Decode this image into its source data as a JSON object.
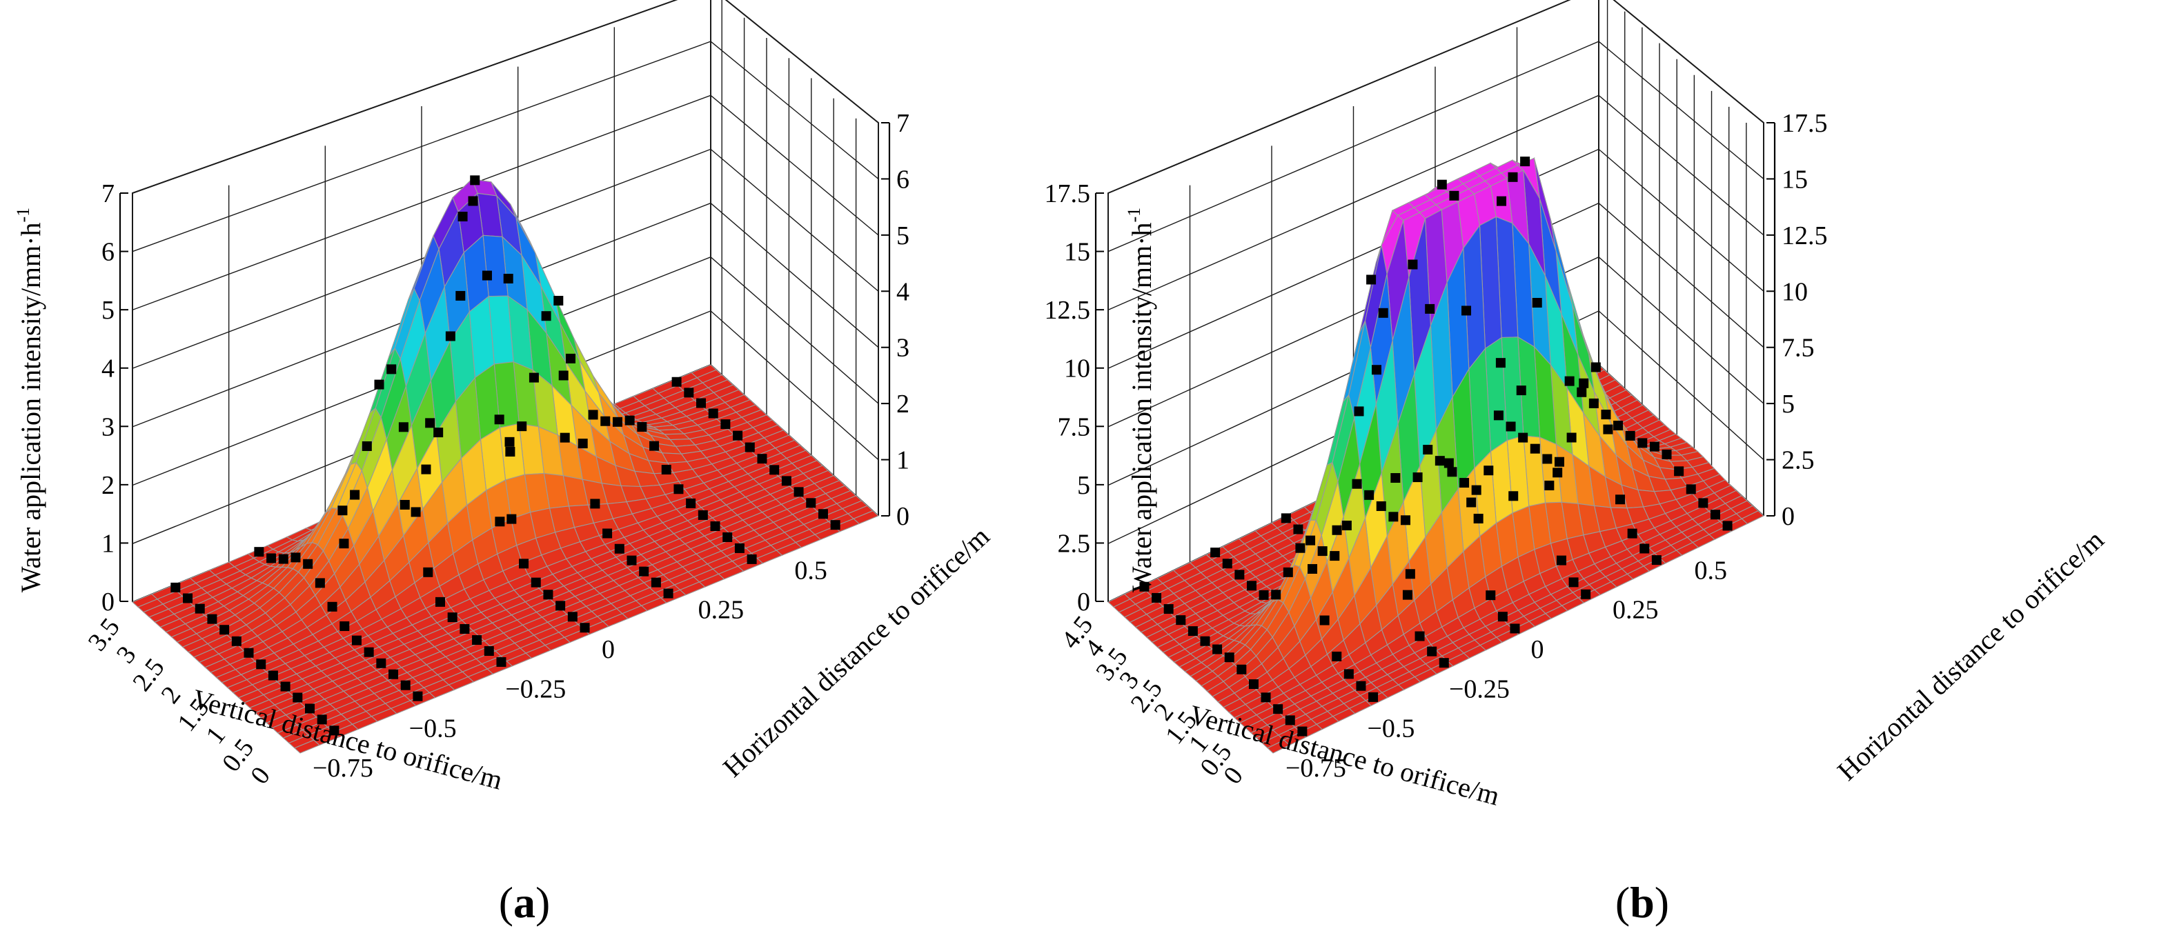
{
  "chart_data": [
    {
      "type": "surface3d",
      "panel_label": "a",
      "z_title": "Water application intensity/mm·h",
      "z_unit_superscript": "-1",
      "y_title": "Vertical distance to orifice/m",
      "x_title": "Horizontal distance to orifice/m",
      "zlim": [
        0,
        7
      ],
      "z_ticks": [
        "0",
        "1",
        "2",
        "3",
        "4",
        "5",
        "6",
        "7"
      ],
      "ylim": [
        0,
        3.75
      ],
      "y_ticks": [
        "0",
        "0.5",
        "1",
        "1.5",
        "2",
        "2.5",
        "3",
        "3.5"
      ],
      "xlim": [
        -0.75,
        0.75
      ],
      "x_ticks": [
        "−0.75",
        "−0.5",
        "−0.25",
        "0",
        "0.25",
        "0.5"
      ],
      "peaks": [
        {
          "x": 0.0,
          "y": 2.6,
          "z": 6.5
        }
      ],
      "measured_points": [
        {
          "x": 0.0,
          "y": 2.6,
          "z": 6.1
        },
        {
          "x": -0.05,
          "y": 2.45,
          "z": 4.6
        },
        {
          "x": 0.08,
          "y": 2.5,
          "z": 4.5
        },
        {
          "x": 0.2,
          "y": 2.3,
          "z": 2.5
        },
        {
          "x": -0.1,
          "y": 2.7,
          "z": 2.2
        },
        {
          "x": 0.05,
          "y": 2.2,
          "z": 1.6
        },
        {
          "x": -0.2,
          "y": 2.4,
          "z": 1.2
        },
        {
          "x": 0.25,
          "y": 2.7,
          "z": 0.9
        },
        {
          "x": 0.0,
          "y": 2.0,
          "z": 0.6
        },
        {
          "x": -0.3,
          "y": 2.9,
          "z": 0.4
        }
      ]
    },
    {
      "type": "surface3d",
      "panel_label": "b",
      "z_title": "Water application intensity/mm·h",
      "z_unit_superscript": "-1",
      "y_title": "Vertical distance to orifice/m",
      "x_title": "Horizontal distance to orifice/m",
      "zlim": [
        0,
        17.5
      ],
      "z_ticks": [
        "0",
        "2.5",
        "5",
        "7.5",
        "10",
        "12.5",
        "15",
        "17.5"
      ],
      "ylim": [
        0,
        4.75
      ],
      "y_ticks": [
        "0",
        "0.5",
        "1",
        "1.5",
        "2",
        "2.5",
        "3",
        "3.5",
        "4",
        "4.5"
      ],
      "xlim": [
        -0.75,
        0.75
      ],
      "x_ticks": [
        "−0.75",
        "−0.5",
        "−0.25",
        "0",
        "0.25",
        "0.5"
      ],
      "peaks": [
        {
          "x": -0.1,
          "y": 2.1,
          "z": 15.0
        },
        {
          "x": 0.15,
          "y": 1.9,
          "z": 16.5
        }
      ],
      "measured_points": [
        {
          "x": 0.15,
          "y": 1.9,
          "z": 16.2
        },
        {
          "x": -0.1,
          "y": 2.1,
          "z": 14.8
        },
        {
          "x": -0.2,
          "y": 2.2,
          "z": 10.5
        },
        {
          "x": 0.2,
          "y": 1.8,
          "z": 7.2
        },
        {
          "x": 0.0,
          "y": 2.0,
          "z": 5.0
        },
        {
          "x": -0.3,
          "y": 2.4,
          "z": 3.5
        },
        {
          "x": 0.3,
          "y": 1.7,
          "z": 2.8
        },
        {
          "x": 0.1,
          "y": 2.3,
          "z": 2.0
        },
        {
          "x": -0.15,
          "y": 1.7,
          "z": 1.4
        },
        {
          "x": 0.25,
          "y": 2.5,
          "z": 0.9
        }
      ]
    }
  ]
}
